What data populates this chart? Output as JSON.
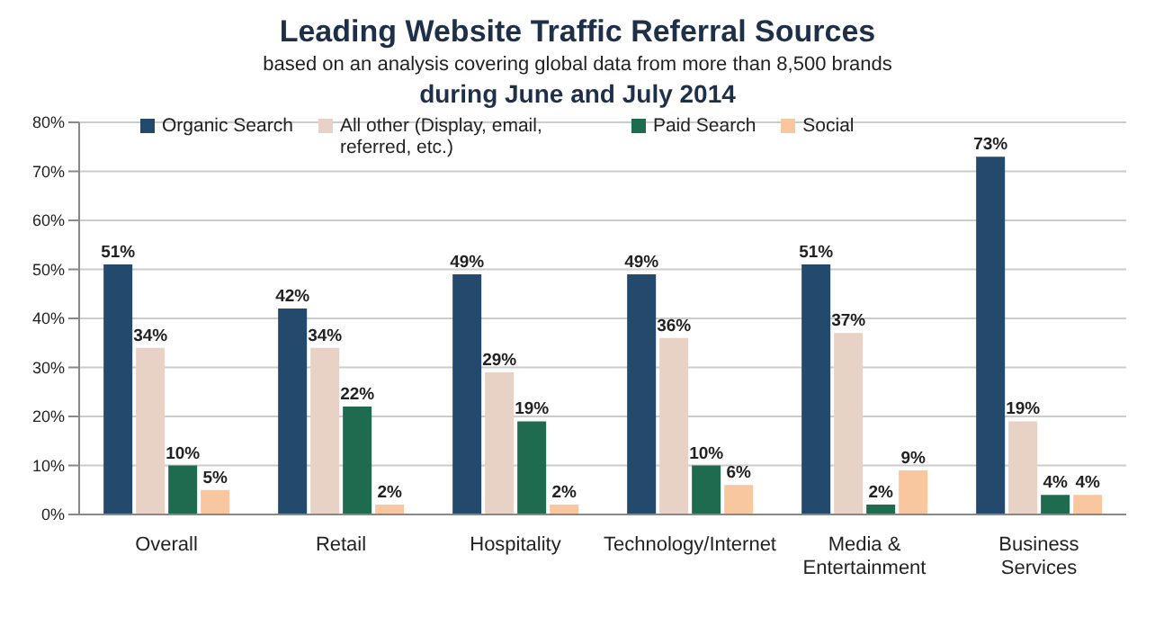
{
  "chart_data": {
    "type": "bar",
    "title": "Leading Website Traffic Referral Sources",
    "subtitle": "based on an analysis covering global data from more than 8,500 brands",
    "annotations": [
      "during June and July 2014"
    ],
    "categories": [
      "Overall",
      "Retail",
      "Hospitality",
      "Technology/Internet",
      "Media & Entertainment",
      "Business Services"
    ],
    "series": [
      {
        "name": "Organic Search",
        "color": "#234a6d",
        "values": [
          51,
          42,
          49,
          49,
          51,
          73
        ],
        "value_labels": [
          "51%",
          "42%",
          "49%",
          "49%",
          "51%",
          "73%"
        ]
      },
      {
        "name": "All other (Display, email, referred, etc.)",
        "color": "#e8d2c6",
        "values": [
          34,
          34,
          29,
          36,
          37,
          19
        ],
        "value_labels": [
          "34%",
          "34%",
          "29%",
          "36%",
          "37%",
          "19%"
        ]
      },
      {
        "name": "Paid Search",
        "color": "#1f6b50",
        "values": [
          10,
          22,
          19,
          10,
          2,
          4
        ],
        "value_labels": [
          "10%",
          "22%",
          "19%",
          "10%",
          "2%",
          "4%"
        ]
      },
      {
        "name": "Social",
        "color": "#f8c7a0",
        "values": [
          5,
          2,
          2,
          6,
          9,
          4
        ],
        "value_labels": [
          "5%",
          "2%",
          "2%",
          "6%",
          "9%",
          "4%"
        ]
      }
    ],
    "ylim": [
      0,
      80
    ],
    "yticks": [
      {
        "value": 0,
        "label": "0%"
      },
      {
        "value": 10,
        "label": "10%"
      },
      {
        "value": 20,
        "label": "20%"
      },
      {
        "value": 30,
        "label": "30%"
      },
      {
        "value": 40,
        "label": "40%"
      },
      {
        "value": 50,
        "label": "50%"
      },
      {
        "value": 60,
        "label": "60%"
      },
      {
        "value": 70,
        "label": "70%"
      },
      {
        "value": 80,
        "label": "80%"
      }
    ],
    "grid": "y",
    "legend": "top"
  }
}
